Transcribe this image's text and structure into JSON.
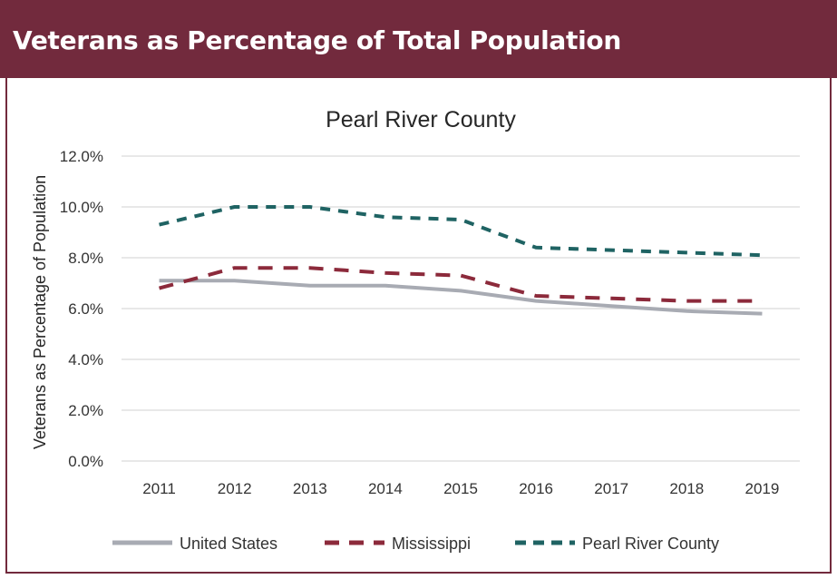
{
  "header": {
    "title": "Veterans as Percentage of Total Population"
  },
  "colors": {
    "header_bg": "#722a3d",
    "us": "#a8abb3",
    "ms": "#8c2a3b",
    "prc": "#1f6363",
    "grid": "#d9d9d9"
  },
  "chart_data": {
    "type": "line",
    "title": "Pearl River County",
    "xlabel": "",
    "ylabel": "Veterans as Percentage of Population",
    "x": [
      "2011",
      "2012",
      "2013",
      "2014",
      "2015",
      "2016",
      "2017",
      "2018",
      "2019"
    ],
    "ylim": [
      0,
      12
    ],
    "yticks": [
      "0.0%",
      "2.0%",
      "4.0%",
      "6.0%",
      "8.0%",
      "10.0%",
      "12.0%"
    ],
    "grid": true,
    "legend_position": "bottom",
    "series": [
      {
        "name": "United States",
        "style": "solid",
        "values": [
          7.1,
          7.1,
          6.9,
          6.9,
          6.7,
          6.3,
          6.1,
          5.9,
          5.8
        ]
      },
      {
        "name": "Mississippi",
        "style": "dashed",
        "values": [
          6.8,
          7.6,
          7.6,
          7.4,
          7.3,
          6.5,
          6.4,
          6.3,
          6.3
        ]
      },
      {
        "name": "Pearl River County",
        "style": "dashed",
        "values": [
          9.3,
          10.0,
          10.0,
          9.6,
          9.5,
          8.4,
          8.3,
          8.2,
          8.1
        ]
      }
    ]
  }
}
